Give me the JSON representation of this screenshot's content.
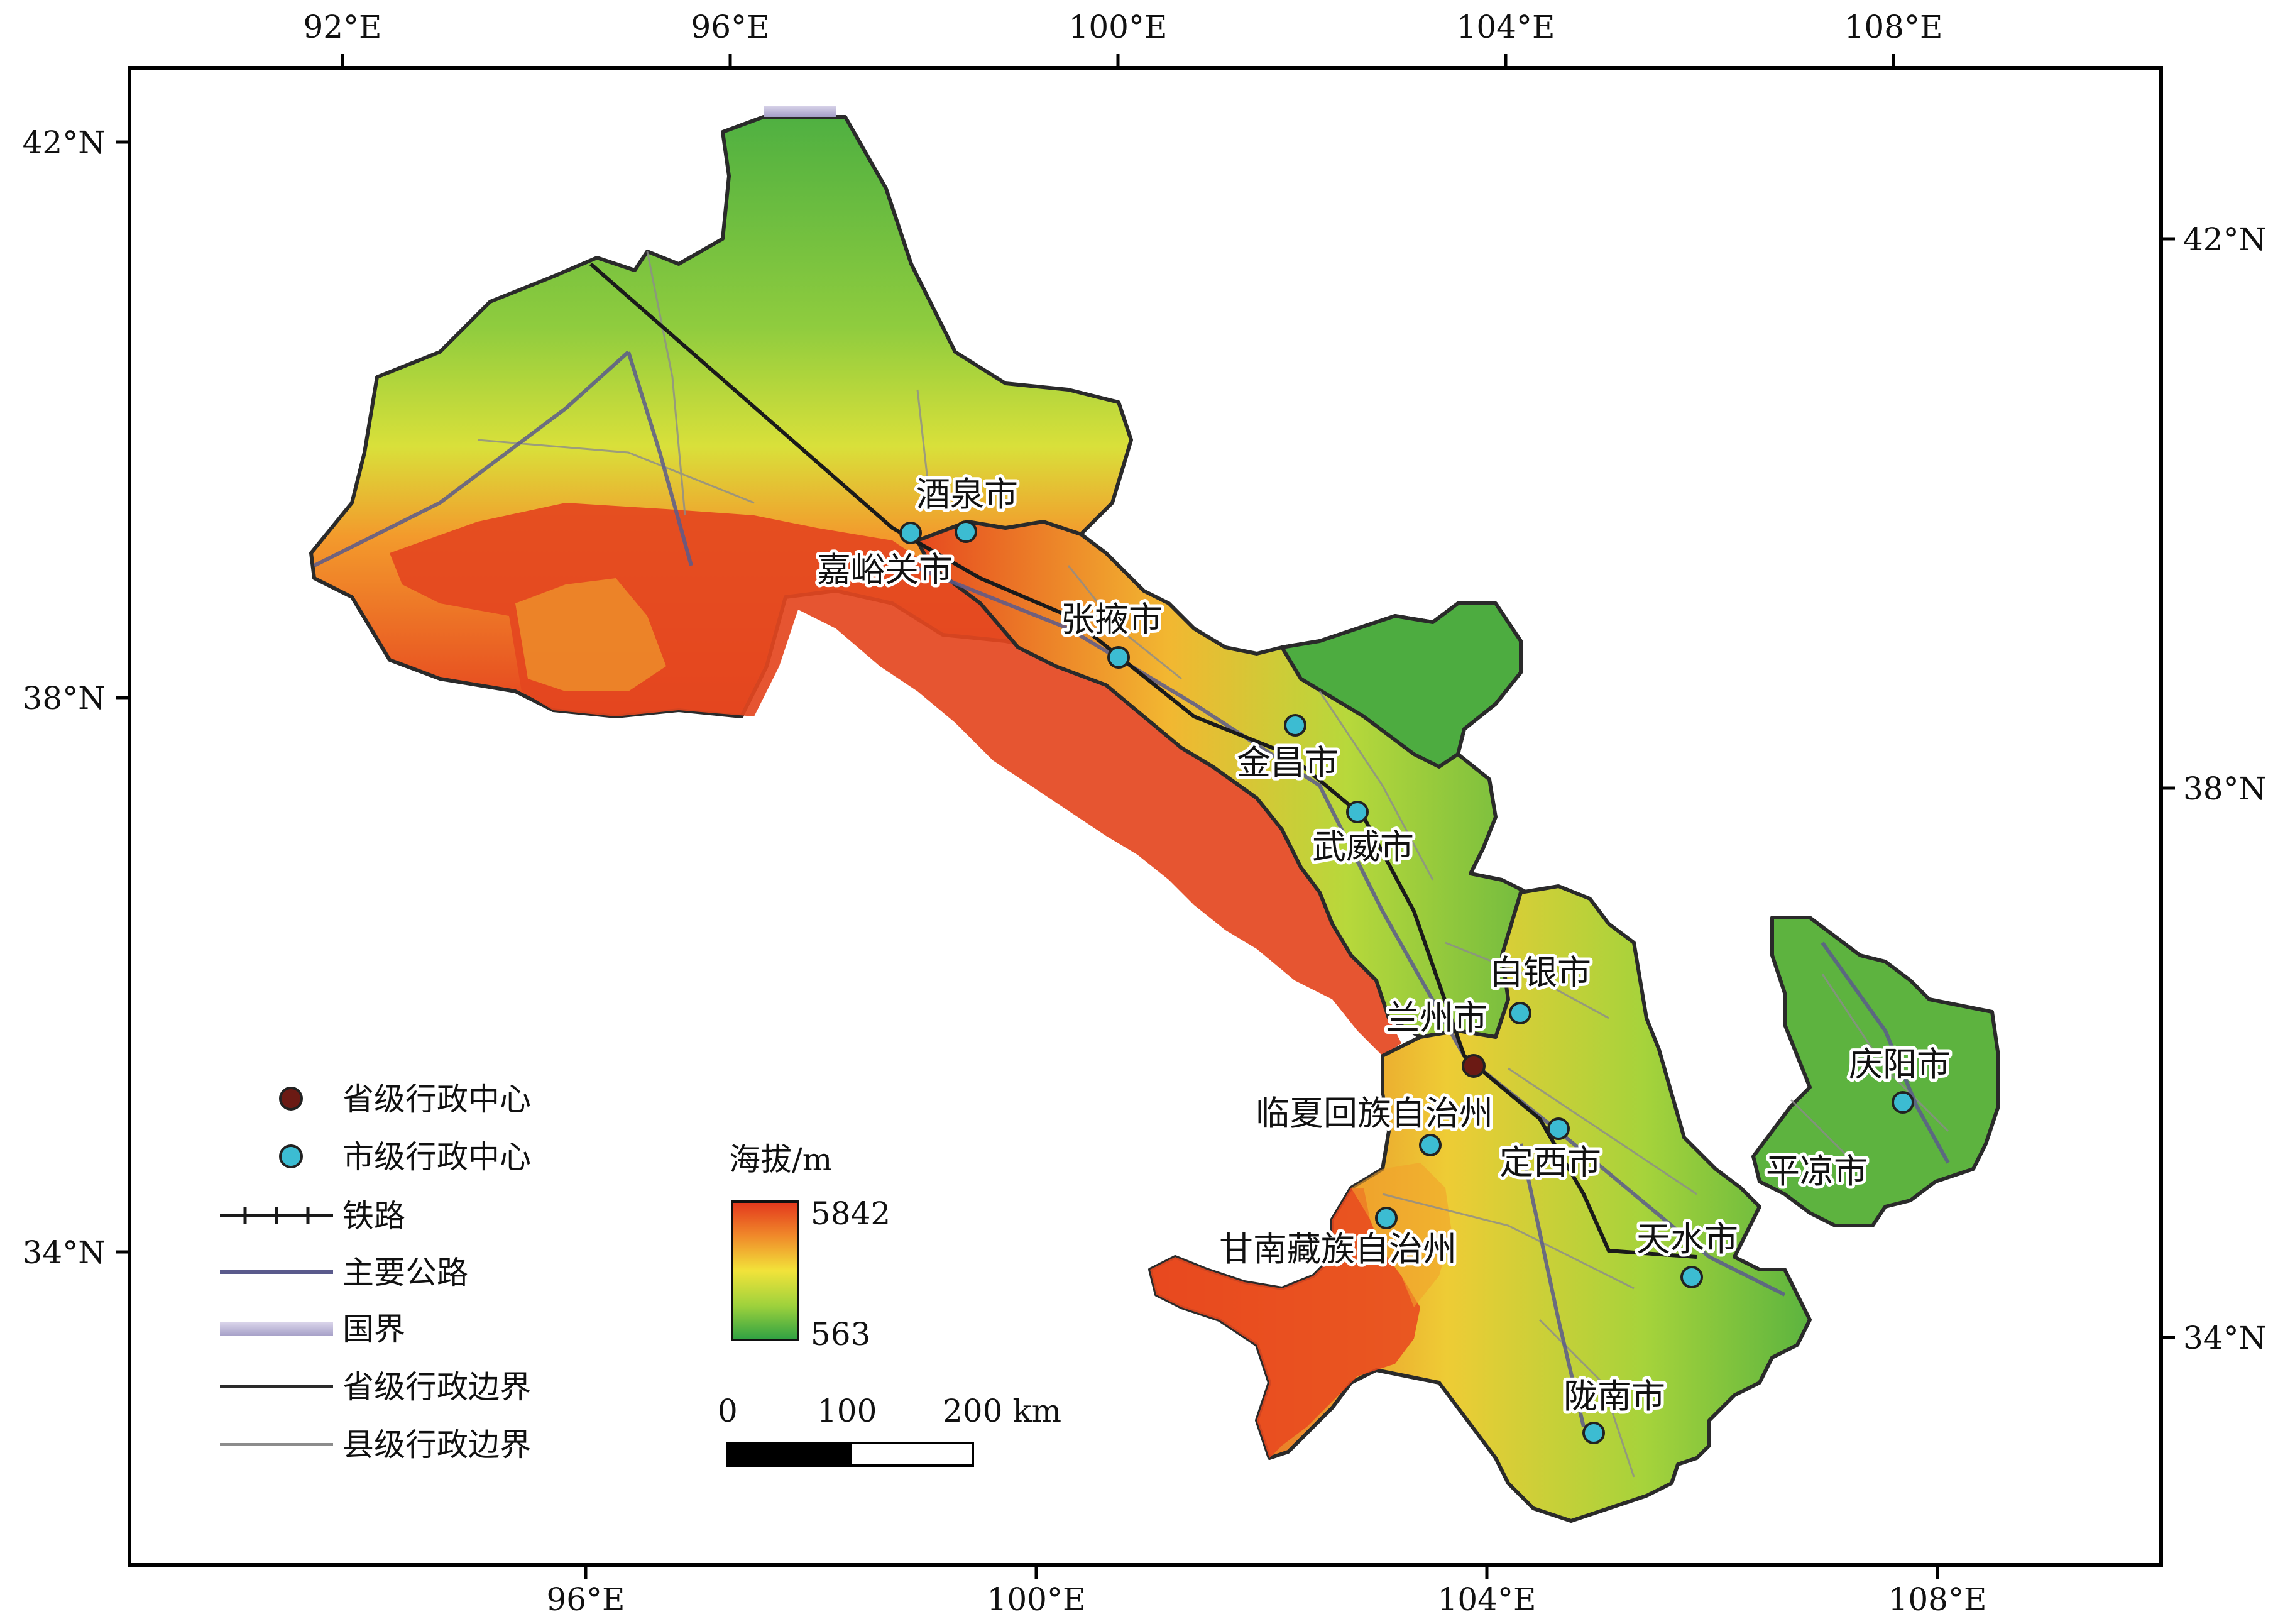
{
  "axes": {
    "top_labels": [
      "92°E",
      "96°E",
      "100°E",
      "104°E",
      "108°E"
    ],
    "bottom_labels": [
      "96°E",
      "100°E",
      "104°E",
      "108°E"
    ],
    "left_labels": [
      "42°N",
      "38°N",
      "34°N"
    ],
    "right_labels": [
      "42°N",
      "38°N",
      "34°N"
    ]
  },
  "cities": [
    {
      "label": "酒泉市",
      "type": "city"
    },
    {
      "label": "嘉峪关市",
      "type": "city"
    },
    {
      "label": "张掖市",
      "type": "city"
    },
    {
      "label": "金昌市",
      "type": "city"
    },
    {
      "label": "武威市",
      "type": "city"
    },
    {
      "label": "白银市",
      "type": "city"
    },
    {
      "label": "兰州市",
      "type": "capital"
    },
    {
      "label": "临夏回族自治州",
      "type": "city"
    },
    {
      "label": "定西市",
      "type": "city"
    },
    {
      "label": "甘南藏族自治州",
      "type": "city"
    },
    {
      "label": "天水市",
      "type": "city"
    },
    {
      "label": "陇南市",
      "type": "city"
    },
    {
      "label": "庆阳市",
      "type": "city"
    },
    {
      "label": "平凉市",
      "type": "city"
    }
  ],
  "legend": {
    "items": [
      {
        "label": "省级行政中心",
        "symbol": "capital-dot",
        "color": "#6b1a14"
      },
      {
        "label": "市级行政中心",
        "symbol": "city-dot",
        "color": "#3cbcd2"
      },
      {
        "label": "铁路",
        "symbol": "railway",
        "color": "#1a1a1a"
      },
      {
        "label": "主要公路",
        "symbol": "highway",
        "color": "#5a5a8c"
      },
      {
        "label": "国界",
        "symbol": "national-border",
        "color": "#b7b1d2"
      },
      {
        "label": "省级行政边界",
        "symbol": "province-border",
        "color": "#2a2a2a"
      },
      {
        "label": "县级行政边界",
        "symbol": "county-border",
        "color": "#8c8c8c"
      }
    ]
  },
  "colorbar": {
    "title": "海拔/m",
    "max_label": "5842",
    "min_label": "563",
    "high_color": "#e3361d",
    "mid_color": "#f2e33a",
    "low_color": "#2ea143"
  },
  "scalebar": {
    "labels": [
      "0",
      "100",
      "200 km"
    ]
  }
}
